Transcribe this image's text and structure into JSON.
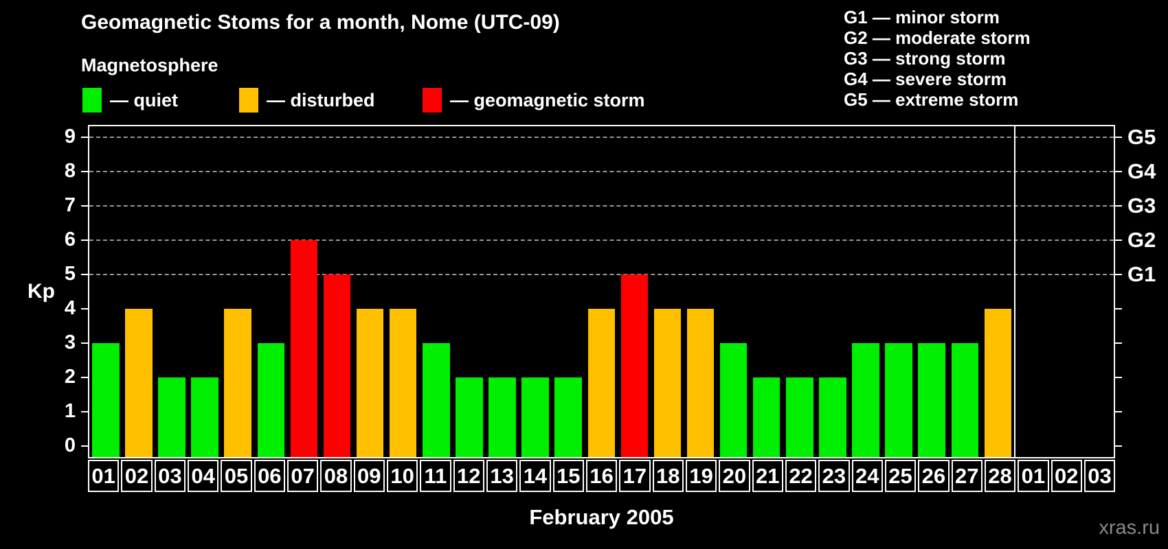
{
  "header": {
    "title": "Geomagnetic Stoms for a month, Nome (UTC-09)"
  },
  "magnetosphere_legend": {
    "heading": "Magnetosphere",
    "items": [
      {
        "key": "quiet",
        "label": "— quiet",
        "color": "#00ee00"
      },
      {
        "key": "disturbed",
        "label": "— disturbed",
        "color": "#ffc000"
      },
      {
        "key": "storm",
        "label": "— geomagnetic storm",
        "color": "#ff0000"
      }
    ]
  },
  "g_scale_legend": {
    "items": [
      "G1 — minor storm",
      "G2 — moderate storm",
      "G3 — strong storm",
      "G4 — severe storm",
      "G5 — extreme storm"
    ]
  },
  "watermark": "xras.ru",
  "chart_data": {
    "type": "bar",
    "title": "Geomagnetic Stoms for a month, Nome (UTC-09)",
    "xlabel": "February 2005",
    "ylabel": "Kp",
    "ylim": [
      0,
      9
    ],
    "yticks": [
      0,
      1,
      2,
      3,
      4,
      5,
      6,
      7,
      8,
      9
    ],
    "gridlines_at_kp": [
      5,
      6,
      7,
      8,
      9
    ],
    "grid_style": "dashed",
    "right_axis": [
      {
        "kp": 5,
        "label": "G1"
      },
      {
        "kp": 6,
        "label": "G2"
      },
      {
        "kp": 7,
        "label": "G3"
      },
      {
        "kp": 8,
        "label": "G4"
      },
      {
        "kp": 9,
        "label": "G5"
      }
    ],
    "colors": {
      "quiet": "#00ee00",
      "disturbed": "#ffc000",
      "storm": "#ff0000"
    },
    "month_separator_after_index": 27,
    "days": [
      {
        "label": "01",
        "kp": 3,
        "status": "quiet"
      },
      {
        "label": "02",
        "kp": 4,
        "status": "disturbed"
      },
      {
        "label": "03",
        "kp": 2,
        "status": "quiet"
      },
      {
        "label": "04",
        "kp": 2,
        "status": "quiet"
      },
      {
        "label": "05",
        "kp": 4,
        "status": "disturbed"
      },
      {
        "label": "06",
        "kp": 3,
        "status": "quiet"
      },
      {
        "label": "07",
        "kp": 6,
        "status": "storm"
      },
      {
        "label": "08",
        "kp": 5,
        "status": "storm"
      },
      {
        "label": "09",
        "kp": 4,
        "status": "disturbed"
      },
      {
        "label": "10",
        "kp": 4,
        "status": "disturbed"
      },
      {
        "label": "11",
        "kp": 3,
        "status": "quiet"
      },
      {
        "label": "12",
        "kp": 2,
        "status": "quiet"
      },
      {
        "label": "13",
        "kp": 2,
        "status": "quiet"
      },
      {
        "label": "14",
        "kp": 2,
        "status": "quiet"
      },
      {
        "label": "15",
        "kp": 2,
        "status": "quiet"
      },
      {
        "label": "16",
        "kp": 4,
        "status": "disturbed"
      },
      {
        "label": "17",
        "kp": 5,
        "status": "storm"
      },
      {
        "label": "18",
        "kp": 4,
        "status": "disturbed"
      },
      {
        "label": "19",
        "kp": 4,
        "status": "disturbed"
      },
      {
        "label": "20",
        "kp": 3,
        "status": "quiet"
      },
      {
        "label": "21",
        "kp": 2,
        "status": "quiet"
      },
      {
        "label": "22",
        "kp": 2,
        "status": "quiet"
      },
      {
        "label": "23",
        "kp": 2,
        "status": "quiet"
      },
      {
        "label": "24",
        "kp": 3,
        "status": "quiet"
      },
      {
        "label": "25",
        "kp": 3,
        "status": "quiet"
      },
      {
        "label": "26",
        "kp": 3,
        "status": "quiet"
      },
      {
        "label": "27",
        "kp": 3,
        "status": "quiet"
      },
      {
        "label": "28",
        "kp": 4,
        "status": "disturbed"
      },
      {
        "label": "01",
        "kp": null,
        "status": "none"
      },
      {
        "label": "02",
        "kp": null,
        "status": "none"
      },
      {
        "label": "03",
        "kp": null,
        "status": "none"
      }
    ]
  }
}
